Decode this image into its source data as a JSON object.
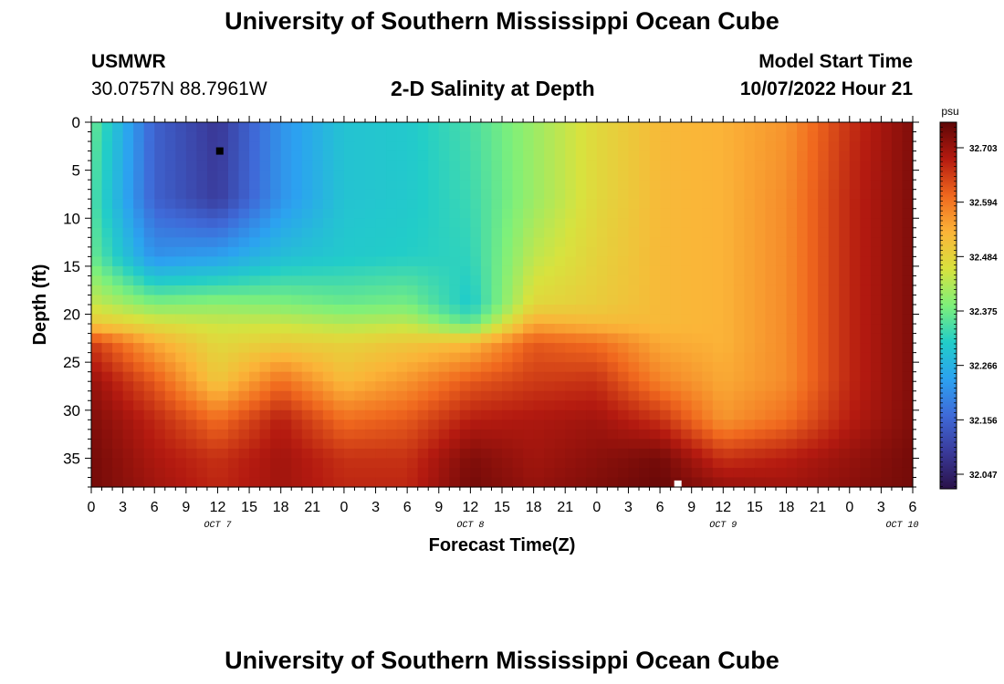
{
  "header": {
    "title": "University of Southern Mississippi Ocean Cube",
    "station": "USMWR",
    "coords": "30.0757N  88.7961W",
    "plot_title": "2-D Salinity at Depth",
    "model_start_label": "Model Start Time",
    "model_start_value": "10/07/2022 Hour 21"
  },
  "footer": {
    "title": "University of Southern Mississippi Ocean Cube"
  },
  "colors": {
    "ramp": [
      "#2a1248",
      "#3a3a9a",
      "#3f6ad8",
      "#2ca2f0",
      "#22cdc8",
      "#7ef07a",
      "#d8e23e",
      "#fbb438",
      "#f0681e",
      "#b41a10",
      "#5e0606"
    ]
  },
  "chart_data": {
    "type": "heatmap",
    "title": "2-D Salinity at Depth",
    "xlabel": "Forecast Time(Z)",
    "ylabel": "Depth (ft)",
    "x_range_hours": [
      0,
      78
    ],
    "y_range_ft": [
      0,
      38
    ],
    "x_ticks": [
      {
        "h": 0,
        "label": "0"
      },
      {
        "h": 3,
        "label": "3"
      },
      {
        "h": 6,
        "label": "6"
      },
      {
        "h": 9,
        "label": "9"
      },
      {
        "h": 12,
        "label": "12"
      },
      {
        "h": 15,
        "label": "15"
      },
      {
        "h": 18,
        "label": "18"
      },
      {
        "h": 21,
        "label": "21"
      },
      {
        "h": 24,
        "label": "0"
      },
      {
        "h": 27,
        "label": "3"
      },
      {
        "h": 30,
        "label": "6"
      },
      {
        "h": 33,
        "label": "9"
      },
      {
        "h": 36,
        "label": "12"
      },
      {
        "h": 39,
        "label": "15"
      },
      {
        "h": 42,
        "label": "18"
      },
      {
        "h": 45,
        "label": "21"
      },
      {
        "h": 48,
        "label": "0"
      },
      {
        "h": 51,
        "label": "3"
      },
      {
        "h": 54,
        "label": "6"
      },
      {
        "h": 57,
        "label": "9"
      },
      {
        "h": 60,
        "label": "12"
      },
      {
        "h": 63,
        "label": "15"
      },
      {
        "h": 66,
        "label": "18"
      },
      {
        "h": 69,
        "label": "21"
      },
      {
        "h": 72,
        "label": "0"
      },
      {
        "h": 75,
        "label": "3"
      },
      {
        "h": 78,
        "label": "6"
      }
    ],
    "date_labels": [
      {
        "h": 12,
        "label": "OCT 7"
      },
      {
        "h": 36,
        "label": "OCT 8"
      },
      {
        "h": 60,
        "label": "OCT 9"
      },
      {
        "h": 77,
        "label": "OCT 10"
      }
    ],
    "y_ticks": [
      0,
      5,
      10,
      15,
      20,
      25,
      30,
      35
    ],
    "colorbar": {
      "unit": "psu",
      "min": 31.99,
      "max": 32.76,
      "ticks": [
        "32.703",
        "32.594",
        "32.484",
        "32.375",
        "32.266",
        "32.156",
        "32.047"
      ]
    },
    "markers": [
      {
        "h": 12.2,
        "depth": 3,
        "color": "#000000"
      },
      {
        "h": 55.7,
        "depth": 37.7,
        "color": "#ffffff"
      }
    ],
    "grid": {
      "times_h": [
        0,
        6,
        12,
        18,
        24,
        30,
        36,
        42,
        48,
        54,
        60,
        66,
        72,
        78
      ],
      "depths_ft": [
        0,
        8,
        14,
        19,
        21,
        23,
        27,
        31,
        35,
        38
      ],
      "values": [
        [
          32.36,
          32.13,
          32.06,
          32.2,
          32.28,
          32.29,
          32.33,
          32.4,
          32.47,
          32.52,
          32.53,
          32.56,
          32.66,
          32.73
        ],
        [
          32.34,
          32.13,
          32.07,
          32.2,
          32.28,
          32.29,
          32.32,
          32.4,
          32.47,
          32.52,
          32.53,
          32.57,
          32.67,
          32.73
        ],
        [
          32.36,
          32.2,
          32.22,
          32.27,
          32.29,
          32.3,
          32.31,
          32.43,
          32.48,
          32.52,
          32.53,
          32.57,
          32.67,
          32.73
        ],
        [
          32.44,
          32.38,
          32.39,
          32.38,
          32.36,
          32.37,
          32.29,
          32.47,
          32.49,
          32.52,
          32.53,
          32.57,
          32.67,
          32.73
        ],
        [
          32.5,
          32.46,
          32.44,
          32.44,
          32.42,
          32.43,
          32.35,
          32.54,
          32.52,
          32.52,
          32.53,
          32.57,
          32.67,
          32.73
        ],
        [
          32.65,
          32.54,
          32.47,
          32.49,
          32.48,
          32.5,
          32.52,
          32.62,
          32.6,
          32.54,
          32.53,
          32.57,
          32.67,
          32.73
        ],
        [
          32.71,
          32.62,
          32.5,
          32.6,
          32.52,
          32.56,
          32.62,
          32.65,
          32.66,
          32.58,
          32.54,
          32.57,
          32.67,
          32.73
        ],
        [
          32.73,
          32.67,
          32.6,
          32.68,
          32.6,
          32.62,
          32.68,
          32.69,
          32.7,
          32.66,
          32.56,
          32.6,
          32.68,
          32.73
        ],
        [
          32.74,
          32.69,
          32.66,
          32.7,
          32.66,
          32.66,
          32.73,
          32.7,
          32.72,
          32.74,
          32.66,
          32.68,
          32.71,
          32.74
        ],
        [
          32.74,
          32.7,
          32.67,
          32.7,
          32.67,
          32.67,
          32.74,
          32.71,
          32.73,
          32.75,
          32.71,
          32.7,
          32.72,
          32.74
        ]
      ]
    }
  }
}
